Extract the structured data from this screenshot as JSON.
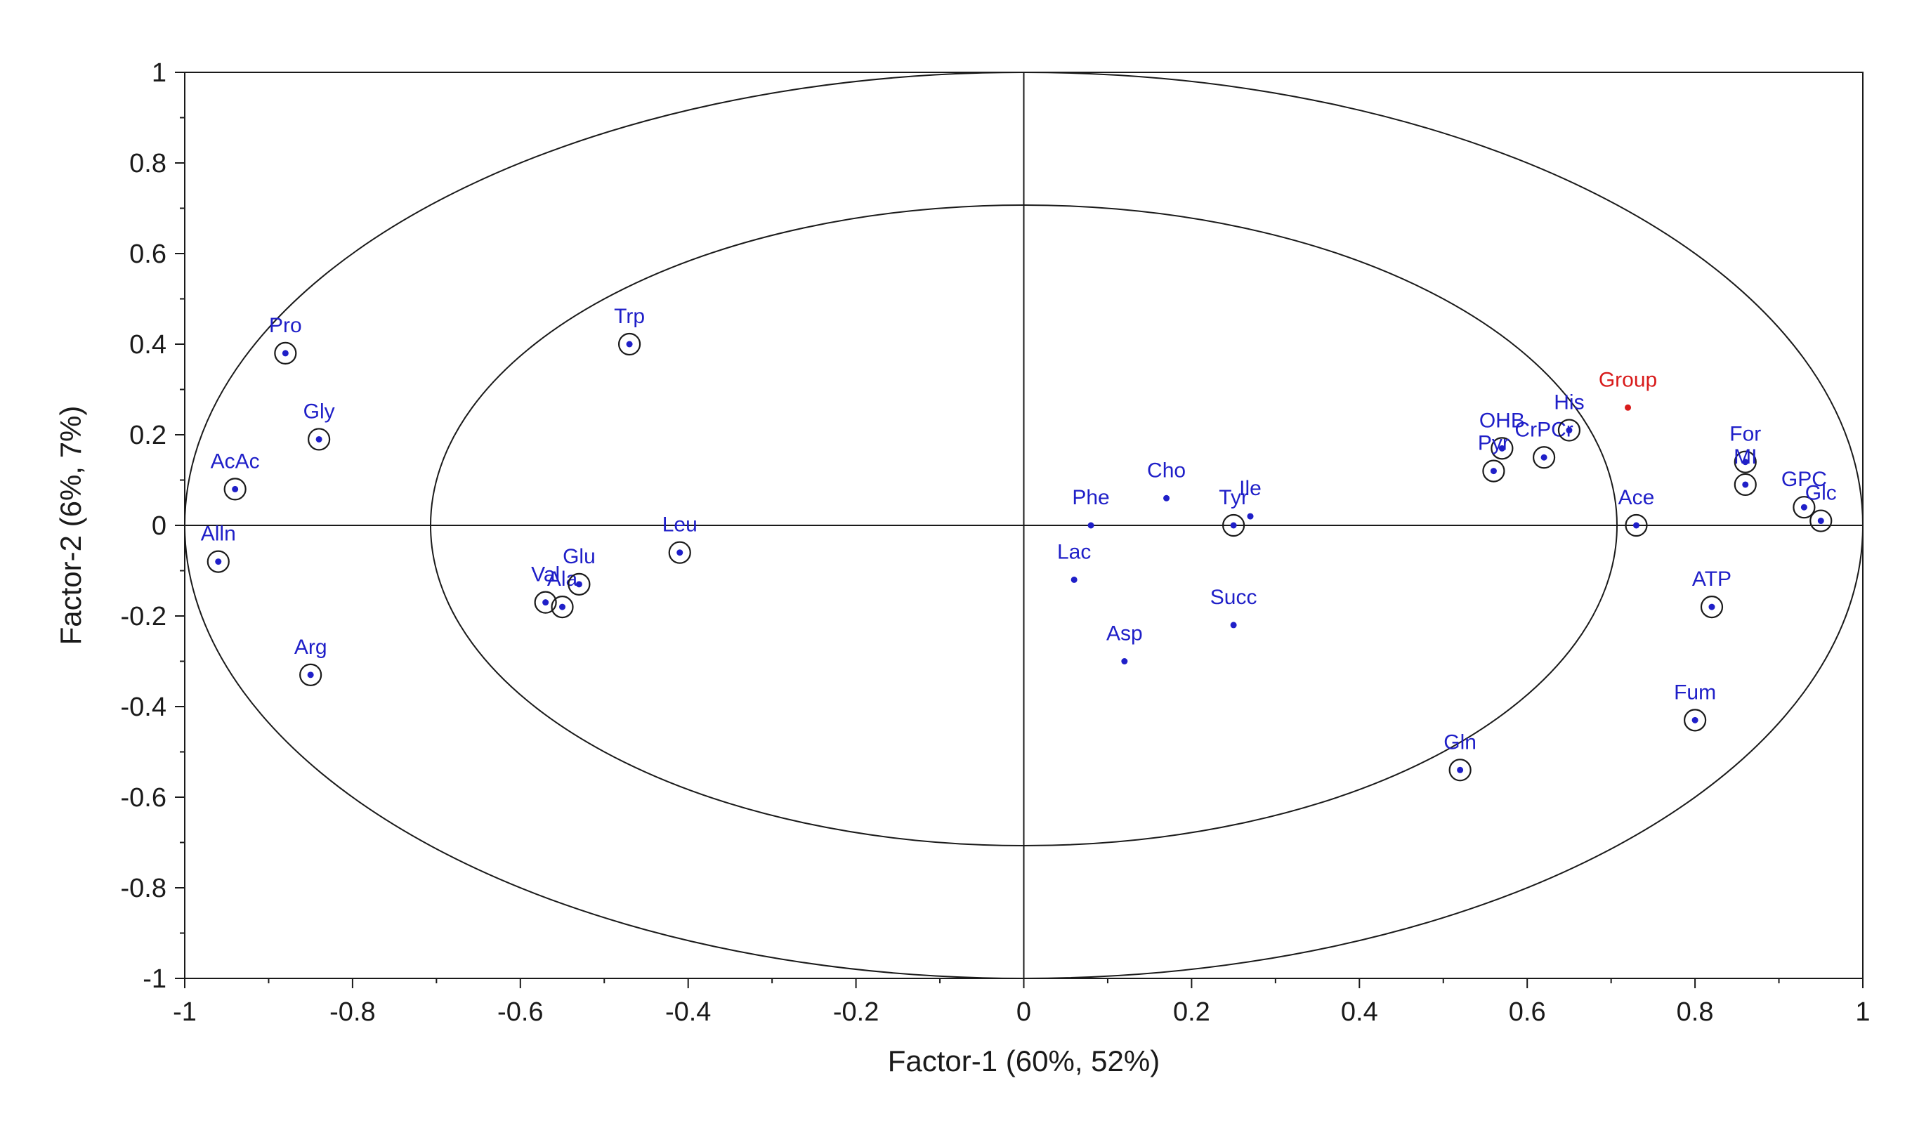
{
  "chart_data": {
    "type": "scatter",
    "title": "",
    "xlabel": "Factor-1 (60%, 52%)",
    "ylabel": "Factor-2 (6%, 7%)",
    "xlim": [
      -1,
      1
    ],
    "ylim": [
      -1,
      1
    ],
    "xticks": [
      -1,
      -0.8,
      -0.6,
      -0.4,
      -0.2,
      0,
      0.2,
      0.4,
      0.6,
      0.8,
      1
    ],
    "yticks": [
      -1,
      -0.8,
      -0.6,
      -0.4,
      -0.2,
      0,
      0.2,
      0.4,
      0.6,
      0.8,
      1
    ],
    "xtick_labels": [
      "-1",
      "-0.8",
      "-0.6",
      "-0.4",
      "-0.2",
      "0",
      "0.2",
      "0.4",
      "0.6",
      "0.8",
      "1"
    ],
    "ytick_labels": [
      "-1",
      "-0.8",
      "-0.6",
      "-0.4",
      "-0.2",
      "0",
      "0.2",
      "0.4",
      "0.6",
      "0.8",
      "1"
    ],
    "correlation_circles": [
      1.0,
      0.707
    ],
    "colors": {
      "point": "#1f1fc8",
      "highlight": "#d81b1b",
      "line": "#1a1a1a"
    },
    "points": [
      {
        "label": "Pro",
        "x": -0.88,
        "y": 0.38,
        "circled": true
      },
      {
        "label": "Gly",
        "x": -0.84,
        "y": 0.19,
        "circled": true
      },
      {
        "label": "AcAc",
        "x": -0.94,
        "y": 0.08,
        "circled": true
      },
      {
        "label": "Alln",
        "x": -0.96,
        "y": -0.08,
        "circled": true
      },
      {
        "label": "Arg",
        "x": -0.85,
        "y": -0.33,
        "circled": true
      },
      {
        "label": "Trp",
        "x": -0.47,
        "y": 0.4,
        "circled": true
      },
      {
        "label": "Leu",
        "x": -0.41,
        "y": -0.06,
        "circled": true
      },
      {
        "label": "Val",
        "x": -0.57,
        "y": -0.17,
        "circled": true
      },
      {
        "label": "Ala",
        "x": -0.55,
        "y": -0.18,
        "circled": true
      },
      {
        "label": "Glu",
        "x": -0.53,
        "y": -0.13,
        "circled": true
      },
      {
        "label": "Phe",
        "x": 0.08,
        "y": 0.0,
        "circled": false
      },
      {
        "label": "Cho",
        "x": 0.17,
        "y": 0.06,
        "circled": false
      },
      {
        "label": "Tyr",
        "x": 0.25,
        "y": 0.0,
        "circled": true
      },
      {
        "label": "Ile",
        "x": 0.27,
        "y": 0.02,
        "circled": false
      },
      {
        "label": "Lac",
        "x": 0.06,
        "y": -0.12,
        "circled": false
      },
      {
        "label": "Succ",
        "x": 0.25,
        "y": -0.22,
        "circled": false
      },
      {
        "label": "Asp",
        "x": 0.12,
        "y": -0.3,
        "circled": false
      },
      {
        "label": "OHB",
        "x": 0.57,
        "y": 0.17,
        "circled": true
      },
      {
        "label": "Pyr",
        "x": 0.56,
        "y": 0.12,
        "circled": true
      },
      {
        "label": "CrPCr",
        "x": 0.62,
        "y": 0.15,
        "circled": true
      },
      {
        "label": "His",
        "x": 0.65,
        "y": 0.21,
        "circled": true
      },
      {
        "label": "Group",
        "x": 0.72,
        "y": 0.26,
        "circled": false,
        "highlight": true
      },
      {
        "label": "Ace",
        "x": 0.73,
        "y": 0.0,
        "circled": true
      },
      {
        "label": "For",
        "x": 0.86,
        "y": 0.14,
        "circled": true
      },
      {
        "label": "MI",
        "x": 0.86,
        "y": 0.09,
        "circled": true
      },
      {
        "label": "GPC",
        "x": 0.93,
        "y": 0.04,
        "circled": true
      },
      {
        "label": "Glc",
        "x": 0.95,
        "y": 0.01,
        "circled": true
      },
      {
        "label": "ATP",
        "x": 0.82,
        "y": -0.18,
        "circled": true
      },
      {
        "label": "Fum",
        "x": 0.8,
        "y": -0.43,
        "circled": true
      },
      {
        "label": "Gln",
        "x": 0.52,
        "y": -0.54,
        "circled": true
      }
    ]
  }
}
